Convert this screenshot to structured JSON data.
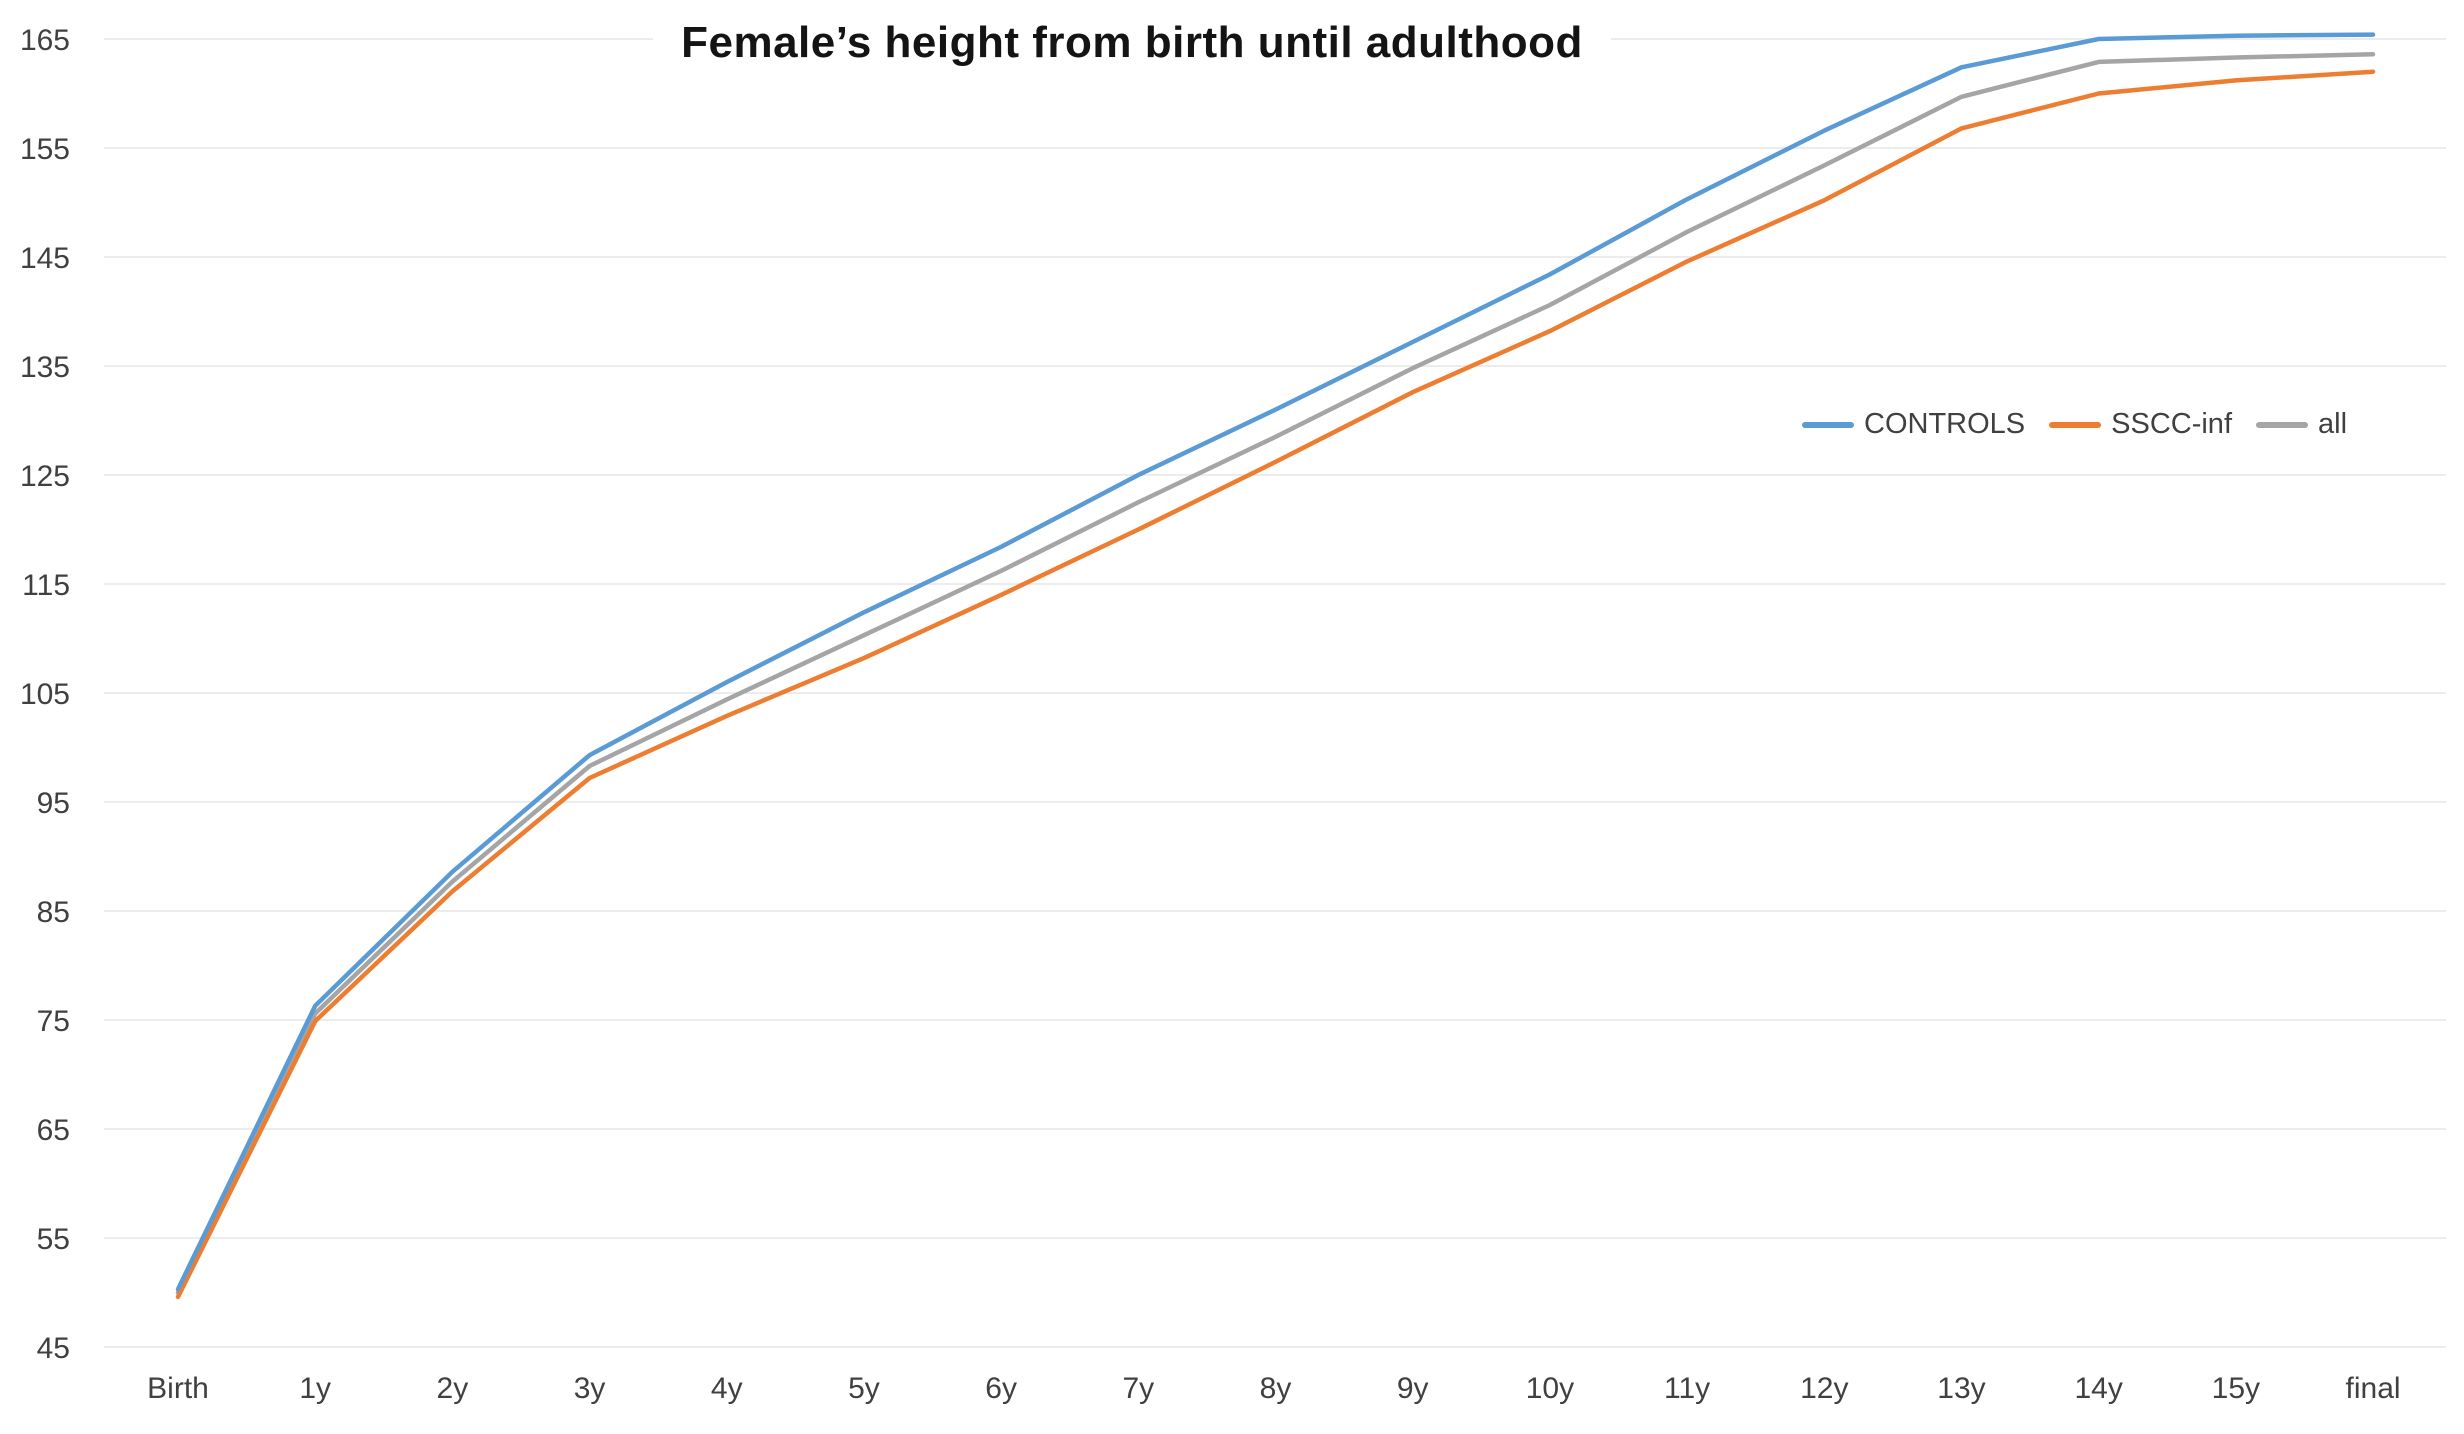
{
  "chart_data": {
    "type": "line",
    "title": "Female’s height from birth until adulthood",
    "categories": [
      "Birth",
      "1y",
      "2y",
      "3y",
      "4y",
      "5y",
      "6y",
      "7y",
      "8y",
      "9y",
      "10y",
      "11y",
      "12y",
      "13y",
      "14y",
      "15y",
      "final"
    ],
    "series": [
      {
        "name": "CONTROLS",
        "color": "#5B9BD5",
        "values": [
          50.3,
          76.3,
          88.6,
          99.3,
          106.0,
          112.4,
          118.4,
          125.0,
          131.0,
          137.2,
          143.4,
          150.3,
          156.6,
          162.4,
          165.0,
          165.3,
          165.4
        ]
      },
      {
        "name": "SSCC-inf",
        "color": "#ED7D31",
        "values": [
          49.6,
          74.9,
          86.8,
          97.2,
          102.9,
          108.2,
          114.0,
          120.0,
          126.2,
          132.6,
          138.2,
          144.6,
          150.2,
          156.8,
          160.0,
          161.2,
          162.0
        ]
      },
      {
        "name": "all",
        "color": "#A5A5A5",
        "values": [
          50.0,
          75.6,
          87.7,
          98.3,
          104.4,
          110.3,
          116.2,
          122.5,
          128.5,
          134.8,
          140.6,
          147.3,
          153.4,
          159.7,
          162.9,
          163.3,
          163.6
        ]
      }
    ],
    "xlabel": "",
    "ylabel": "",
    "ylim": [
      45,
      165
    ],
    "y_ticks": [
      45,
      55,
      65,
      75,
      85,
      95,
      105,
      115,
      125,
      135,
      145,
      155,
      165
    ],
    "grid": true,
    "legend_position": "middle-right"
  },
  "colors": {
    "gridline": "#ECECEC",
    "tick_text": "#404040",
    "title_text": "#141414",
    "background": "#FFFFFF"
  }
}
